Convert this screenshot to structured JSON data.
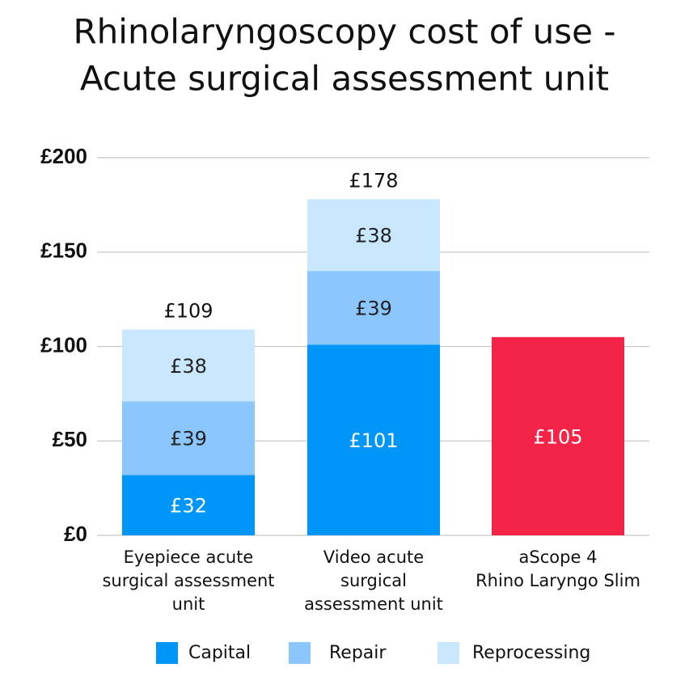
{
  "chart_data": {
    "type": "stacked_bar",
    "title": [
      "Rhinolaryngoscopy cost of use -",
      "Acute surgical assessment unit"
    ],
    "categories": [
      [
        "Eyepiece acute",
        "surgical assessment",
        "unit"
      ],
      [
        "Video acute",
        "surgical",
        "assessment unit"
      ],
      [
        "aScope 4",
        "Rhino Laryngo Slim"
      ]
    ],
    "series": [
      {
        "name": "Capital",
        "color": "#0096f9",
        "colors": [
          "#0096f9",
          "#0096f9",
          "#f32447"
        ],
        "values": [
          32,
          101,
          105
        ],
        "value_labels": [
          "£32",
          "£101",
          "£105"
        ]
      },
      {
        "name": "Repair",
        "color": "#8cc6ff",
        "values": [
          39,
          39,
          null
        ],
        "value_labels": [
          "£39",
          "£39",
          null
        ]
      },
      {
        "name": "Reprocessing",
        "color": "#c9e8ff",
        "values": [
          38,
          38,
          null
        ],
        "value_labels": [
          "£38",
          "£38",
          null
        ]
      }
    ],
    "totals": [
      109,
      178,
      null
    ],
    "total_labels": [
      "£109",
      "£178",
      null
    ],
    "ylim": [
      0,
      200
    ],
    "yticks": [
      {
        "value": 0,
        "label": "£0"
      },
      {
        "value": 50,
        "label": "£50"
      },
      {
        "value": 100,
        "label": "£100"
      },
      {
        "value": 150,
        "label": "£150"
      },
      {
        "value": 200,
        "label": "£200"
      }
    ],
    "grid": true,
    "legend": "bottom"
  }
}
